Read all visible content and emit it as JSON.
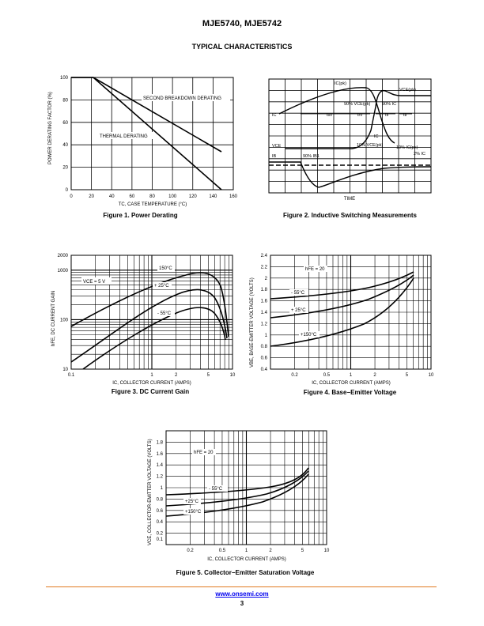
{
  "header": {
    "title": "MJE5740, MJE5742",
    "section": "TYPICAL CHARACTERISTICS"
  },
  "footer": {
    "link": "www.onsemi.com",
    "page": "3"
  },
  "fig1": {
    "caption": "Figure 1. Power Derating",
    "ylabel": "POWER DERATING FACTOR (%)",
    "xlabel": "TC, CASE TEMPERATURE (°C)",
    "xticks": [
      "0",
      "20",
      "40",
      "60",
      "80",
      "100",
      "120",
      "140",
      "160"
    ],
    "yticks": [
      "0",
      "20",
      "40",
      "60",
      "80",
      "100"
    ],
    "label_second": "SECOND BREAKDOWN DERATING",
    "label_thermal": "THERMAL DERATING"
  },
  "fig2": {
    "caption": "Figure 2. Inductive Switching Measurements",
    "xlabel": "TIME",
    "labels": {
      "icpk": "IC(pk)",
      "vcepk": "VCE(pk)",
      "ic": "IC",
      "vce": "VCE",
      "ib": "IB",
      "p90v": "90% VCE(pk)",
      "p90i": "90% IC",
      "tsv": "tsv",
      "trv": "trv",
      "tfi": "tfi",
      "tti": "tti",
      "p10v": "10% VCE(pk)",
      "p10i": "10% IC(pk)",
      "p2i": "2% IC",
      "p90ib": "90% IB1",
      "icmid": "IC"
    }
  },
  "fig3": {
    "caption": "Figure 3. DC Current Gain",
    "ylabel": "hFE, DC CURRENT GAIN",
    "xlabel": "IC, COLLECTOR CURRENT (AMPS)",
    "xticks": [
      "0.1",
      "1",
      "2",
      "5",
      "10"
    ],
    "yticks": [
      "10",
      "100",
      "1000",
      "2000"
    ],
    "vce": "VCE = 5 V",
    "curves": [
      "150°C",
      "+ 25°C",
      "- 55°C"
    ]
  },
  "fig4": {
    "caption": "Figure 4. Base−Emitter Voltage",
    "ylabel": "VBE, BASE-EMITTER VOLTAGE (VOLTS)",
    "xlabel": "IC, COLLECTOR CURRENT (AMPS)",
    "xticks": [
      "0.2",
      "0.5",
      "1",
      "2",
      "5",
      "10"
    ],
    "yticks": [
      "0.4",
      "0.6",
      "0.8",
      "1",
      "1.2",
      "1.4",
      "1.6",
      "1.8",
      "2",
      "2.2",
      "2.4"
    ],
    "hfe": "hFE = 20",
    "curves": [
      "- 55°C",
      "+ 25°C",
      "+150°C"
    ]
  },
  "fig5": {
    "caption": "Figure 5. Collector−Emitter Saturation Voltage",
    "ylabel": "VCE, COLLECTOR-EMITTER VOLTAGE (VOLTS)",
    "xlabel": "IC, COLLECTOR CURRENT (AMPS)",
    "xticks": [
      "0.2",
      "0.5",
      "1",
      "2",
      "5",
      "10"
    ],
    "yticks": [
      "0.1",
      "0.2",
      "0.4",
      "0.6",
      "0.8",
      "1",
      "1.2",
      "1.4",
      "1.6",
      "1.8"
    ],
    "hfe": "hFE = 20",
    "curves": [
      "- 55°C",
      "+25°C",
      "+150°C"
    ]
  }
}
